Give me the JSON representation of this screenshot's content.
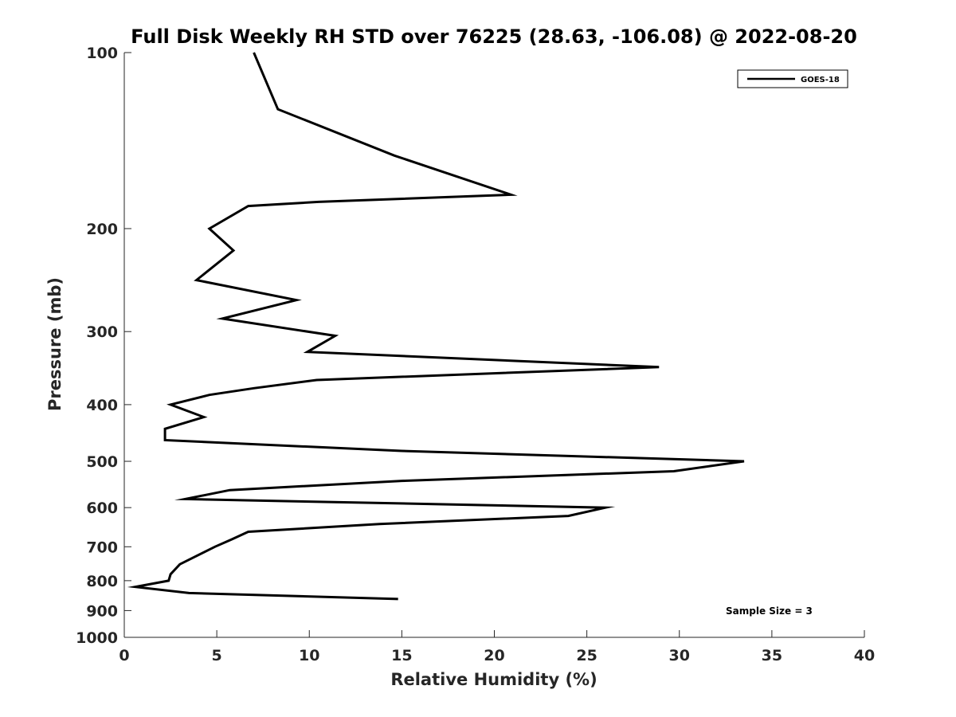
{
  "chart_data": {
    "type": "line",
    "title": "Full Disk Weekly RH STD over 76225 (28.63, -106.08) @ 2022-08-20",
    "xlabel": "Relative Humidity (%)",
    "ylabel": "Pressure (mb)",
    "xlim": [
      0,
      40
    ],
    "ylim": [
      100,
      1000
    ],
    "y_scale": "log",
    "y_reversed": true,
    "x_ticks": [
      0,
      5,
      10,
      15,
      20,
      25,
      30,
      35,
      40
    ],
    "y_ticks": [
      100,
      200,
      300,
      400,
      500,
      600,
      700,
      800,
      900,
      1000
    ],
    "grid": false,
    "legend_position": "top-right",
    "series": [
      {
        "name": "GOES-18",
        "color": "#000000",
        "points": [
          {
            "rh": 7.0,
            "p": 100
          },
          {
            "rh": 8.3,
            "p": 125
          },
          {
            "rh": 14.6,
            "p": 150
          },
          {
            "rh": 20.9,
            "p": 175
          },
          {
            "rh": 10.5,
            "p": 180
          },
          {
            "rh": 6.7,
            "p": 183
          },
          {
            "rh": 4.6,
            "p": 200
          },
          {
            "rh": 5.9,
            "p": 218
          },
          {
            "rh": 3.9,
            "p": 245
          },
          {
            "rh": 9.3,
            "p": 265
          },
          {
            "rh": 5.3,
            "p": 285
          },
          {
            "rh": 11.4,
            "p": 305
          },
          {
            "rh": 9.9,
            "p": 325
          },
          {
            "rh": 28.9,
            "p": 345
          },
          {
            "rh": 10.4,
            "p": 363
          },
          {
            "rh": 7.0,
            "p": 375
          },
          {
            "rh": 4.6,
            "p": 385
          },
          {
            "rh": 2.5,
            "p": 400
          },
          {
            "rh": 4.3,
            "p": 420
          },
          {
            "rh": 2.2,
            "p": 440
          },
          {
            "rh": 2.2,
            "p": 460
          },
          {
            "rh": 15.0,
            "p": 480
          },
          {
            "rh": 33.5,
            "p": 500
          },
          {
            "rh": 29.7,
            "p": 520
          },
          {
            "rh": 15.0,
            "p": 540
          },
          {
            "rh": 5.7,
            "p": 560
          },
          {
            "rh": 3.3,
            "p": 580
          },
          {
            "rh": 26.0,
            "p": 600
          },
          {
            "rh": 24.0,
            "p": 620
          },
          {
            "rh": 13.8,
            "p": 640
          },
          {
            "rh": 6.7,
            "p": 660
          },
          {
            "rh": 5.8,
            "p": 680
          },
          {
            "rh": 4.9,
            "p": 700
          },
          {
            "rh": 3.0,
            "p": 750
          },
          {
            "rh": 2.5,
            "p": 780
          },
          {
            "rh": 2.4,
            "p": 800
          },
          {
            "rh": 0.6,
            "p": 820
          },
          {
            "rh": 3.5,
            "p": 840
          },
          {
            "rh": 14.8,
            "p": 860
          }
        ]
      }
    ],
    "annotation": "Sample Size = 3"
  }
}
